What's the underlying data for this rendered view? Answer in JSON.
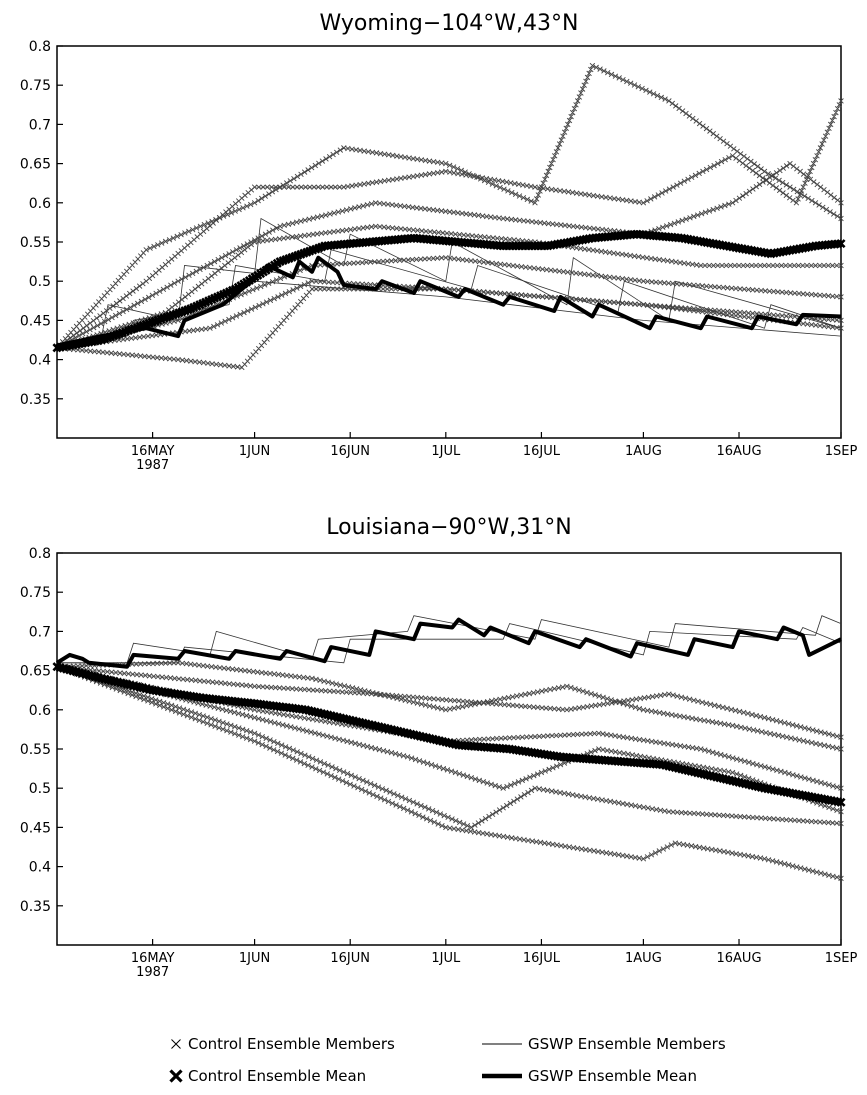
{
  "chart_data": [
    {
      "type": "line",
      "title": "Wyoming−104°W,43°N",
      "xlabel": "",
      "ylabel": "",
      "ylim": [
        0.3,
        0.8
      ],
      "yticks": [
        0.35,
        0.4,
        0.45,
        0.5,
        0.55,
        0.6,
        0.65,
        0.7,
        0.75,
        0.8
      ],
      "xlim": [
        "1987-05-01",
        "1987-09-01"
      ],
      "xticks": [
        {
          "date": "1987-05-16",
          "label": "16MAY",
          "sublabel": "1987"
        },
        {
          "date": "1987-06-01",
          "label": "1JUN"
        },
        {
          "date": "1987-06-16",
          "label": "16JUN"
        },
        {
          "date": "1987-07-01",
          "label": "1JUL"
        },
        {
          "date": "1987-07-16",
          "label": "16JUL"
        },
        {
          "date": "1987-08-01",
          "label": "1AUG"
        },
        {
          "date": "1987-08-16",
          "label": "16AUG"
        },
        {
          "date": "1987-09-01",
          "label": "1SEP"
        }
      ],
      "series": [
        {
          "name": "Control Ensemble Mean",
          "style": "mean-x",
          "x": [
            "1987-05-01",
            "1987-05-08",
            "1987-05-15",
            "1987-05-22",
            "1987-05-29",
            "1987-06-05",
            "1987-06-12",
            "1987-06-19",
            "1987-06-26",
            "1987-07-03",
            "1987-07-10",
            "1987-07-17",
            "1987-07-24",
            "1987-07-31",
            "1987-08-07",
            "1987-08-14",
            "1987-08-21",
            "1987-08-28",
            "1987-09-01"
          ],
          "y": [
            0.415,
            0.425,
            0.445,
            0.465,
            0.49,
            0.525,
            0.545,
            0.55,
            0.555,
            0.55,
            0.545,
            0.545,
            0.555,
            0.56,
            0.555,
            0.545,
            0.535,
            0.545,
            0.548
          ]
        },
        {
          "name": "GSWP Ensemble Mean",
          "style": "mean-line",
          "x": [
            "1987-05-01",
            "1987-05-08",
            "1987-05-15",
            "1987-05-20",
            "1987-05-21",
            "1987-05-27",
            "1987-06-02",
            "1987-06-03",
            "1987-06-07",
            "1987-06-08",
            "1987-06-10",
            "1987-06-11",
            "1987-06-14",
            "1987-06-15",
            "1987-06-20",
            "1987-06-21",
            "1987-06-26",
            "1987-06-27",
            "1987-07-03",
            "1987-07-04",
            "1987-07-10",
            "1987-07-11",
            "1987-07-18",
            "1987-07-19",
            "1987-07-24",
            "1987-07-25",
            "1987-08-02",
            "1987-08-03",
            "1987-08-10",
            "1987-08-11",
            "1987-08-18",
            "1987-08-19",
            "1987-08-25",
            "1987-08-26",
            "1987-09-01"
          ],
          "y": [
            0.418,
            0.43,
            0.44,
            0.43,
            0.45,
            0.47,
            0.51,
            0.52,
            0.505,
            0.525,
            0.512,
            0.53,
            0.512,
            0.495,
            0.49,
            0.5,
            0.485,
            0.5,
            0.48,
            0.49,
            0.47,
            0.48,
            0.462,
            0.48,
            0.455,
            0.47,
            0.44,
            0.455,
            0.44,
            0.455,
            0.44,
            0.455,
            0.445,
            0.457,
            0.455
          ]
        },
        {
          "name": "Control Ensemble Members",
          "style": "member-x",
          "x": [
            "1987-05-01",
            "1987-05-15",
            "1987-06-01",
            "1987-06-15",
            "1987-07-01",
            "1987-07-15",
            "1987-07-24",
            "1987-08-05",
            "1987-08-20",
            "1987-09-01"
          ],
          "y": [
            0.415,
            0.54,
            0.6,
            0.67,
            0.65,
            0.6,
            0.775,
            0.73,
            0.64,
            0.58
          ]
        },
        {
          "name": "Control Ensemble Members",
          "style": "member-x",
          "x": [
            "1987-05-01",
            "1987-05-15",
            "1987-06-01",
            "1987-06-15",
            "1987-07-01",
            "1987-07-15",
            "1987-08-01",
            "1987-08-15",
            "1987-08-25",
            "1987-09-01"
          ],
          "y": [
            0.415,
            0.5,
            0.62,
            0.62,
            0.64,
            0.62,
            0.6,
            0.66,
            0.6,
            0.73
          ]
        },
        {
          "name": "Control Ensemble Members",
          "style": "member-x",
          "x": [
            "1987-05-01",
            "1987-05-20",
            "1987-06-05",
            "1987-06-20",
            "1987-07-10",
            "1987-08-01",
            "1987-08-15",
            "1987-08-24",
            "1987-09-01"
          ],
          "y": [
            0.415,
            0.5,
            0.57,
            0.6,
            0.58,
            0.56,
            0.6,
            0.65,
            0.6
          ]
        },
        {
          "name": "Control Ensemble Members",
          "style": "member-x",
          "x": [
            "1987-05-01",
            "1987-05-18",
            "1987-06-01",
            "1987-06-20",
            "1987-07-15",
            "1987-08-10",
            "1987-09-01"
          ],
          "y": [
            0.415,
            0.46,
            0.55,
            0.57,
            0.55,
            0.52,
            0.52
          ]
        },
        {
          "name": "Control Ensemble Members",
          "style": "member-x",
          "x": [
            "1987-05-01",
            "1987-05-20",
            "1987-06-10",
            "1987-07-01",
            "1987-08-01",
            "1987-09-01"
          ],
          "y": [
            0.415,
            0.45,
            0.52,
            0.53,
            0.5,
            0.48
          ]
        },
        {
          "name": "Control Ensemble Members",
          "style": "member-x",
          "x": [
            "1987-05-01",
            "1987-05-25",
            "1987-06-10",
            "1987-07-01",
            "1987-08-01",
            "1987-09-01"
          ],
          "y": [
            0.415,
            0.44,
            0.5,
            0.49,
            0.47,
            0.45
          ]
        },
        {
          "name": "Control Ensemble Members",
          "style": "member-x",
          "x": [
            "1987-05-01",
            "1987-05-20",
            "1987-05-30",
            "1987-06-10",
            "1987-07-01",
            "1987-08-01",
            "1987-09-01"
          ],
          "y": [
            0.415,
            0.4,
            0.39,
            0.49,
            0.49,
            0.47,
            0.44
          ]
        },
        {
          "name": "GSWP Ensemble Members",
          "style": "member-line",
          "x": [
            "1987-05-01",
            "1987-05-08",
            "1987-05-09",
            "1987-05-20",
            "1987-05-21",
            "1987-06-01",
            "1987-06-02",
            "1987-06-15",
            "1987-06-16",
            "1987-07-01",
            "1987-07-02",
            "1987-07-20",
            "1987-07-21",
            "1987-08-05",
            "1987-08-06",
            "1987-09-01"
          ],
          "y": [
            0.418,
            0.43,
            0.47,
            0.45,
            0.52,
            0.51,
            0.58,
            0.52,
            0.56,
            0.5,
            0.55,
            0.47,
            0.53,
            0.45,
            0.5,
            0.44
          ]
        },
        {
          "name": "GSWP Ensemble Members",
          "style": "member-line",
          "x": [
            "1987-05-01",
            "1987-05-12",
            "1987-05-13",
            "1987-05-28",
            "1987-05-29",
            "1987-06-12",
            "1987-06-13",
            "1987-07-05",
            "1987-07-06",
            "1987-07-28",
            "1987-07-29",
            "1987-08-20",
            "1987-08-21",
            "1987-09-01"
          ],
          "y": [
            0.418,
            0.43,
            0.45,
            0.47,
            0.52,
            0.5,
            0.54,
            0.49,
            0.52,
            0.46,
            0.5,
            0.44,
            0.47,
            0.44
          ]
        },
        {
          "name": "GSWP Ensemble Members",
          "style": "member-line",
          "x": [
            "1987-05-01",
            "1987-05-16",
            "1987-06-01",
            "1987-07-01",
            "1987-08-01",
            "1987-09-01"
          ],
          "y": [
            0.418,
            0.44,
            0.5,
            0.48,
            0.45,
            0.43
          ]
        }
      ]
    },
    {
      "type": "line",
      "title": "Louisiana−90°W,31°N",
      "xlabel": "",
      "ylabel": "",
      "ylim": [
        0.3,
        0.8
      ],
      "yticks": [
        0.35,
        0.4,
        0.45,
        0.5,
        0.55,
        0.6,
        0.65,
        0.7,
        0.75,
        0.8
      ],
      "xlim": [
        "1987-05-01",
        "1987-09-01"
      ],
      "xticks": [
        {
          "date": "1987-05-16",
          "label": "16MAY",
          "sublabel": "1987"
        },
        {
          "date": "1987-06-01",
          "label": "1JUN"
        },
        {
          "date": "1987-06-16",
          "label": "16JUN"
        },
        {
          "date": "1987-07-01",
          "label": "1JUL"
        },
        {
          "date": "1987-07-16",
          "label": "16JUL"
        },
        {
          "date": "1987-08-01",
          "label": "1AUG"
        },
        {
          "date": "1987-08-16",
          "label": "16AUG"
        },
        {
          "date": "1987-09-01",
          "label": "1SEP"
        }
      ],
      "series": [
        {
          "name": "Control Ensemble Mean",
          "style": "mean-x",
          "x": [
            "1987-05-01",
            "1987-05-08",
            "1987-05-16",
            "1987-05-24",
            "1987-06-01",
            "1987-06-09",
            "1987-06-17",
            "1987-06-25",
            "1987-07-03",
            "1987-07-11",
            "1987-07-19",
            "1987-07-27",
            "1987-08-04",
            "1987-08-12",
            "1987-08-20",
            "1987-08-28",
            "1987-09-01"
          ],
          "y": [
            0.655,
            0.64,
            0.625,
            0.615,
            0.608,
            0.6,
            0.585,
            0.57,
            0.555,
            0.55,
            0.54,
            0.535,
            0.53,
            0.515,
            0.5,
            0.488,
            0.482
          ]
        },
        {
          "name": "GSWP Ensemble Mean",
          "style": "mean-line",
          "x": [
            "1987-05-01",
            "1987-05-03",
            "1987-05-05",
            "1987-05-06",
            "1987-05-12",
            "1987-05-13",
            "1987-05-20",
            "1987-05-21",
            "1987-05-28",
            "1987-05-29",
            "1987-06-05",
            "1987-06-06",
            "1987-06-12",
            "1987-06-13",
            "1987-06-19",
            "1987-06-20",
            "1987-06-26",
            "1987-06-27",
            "1987-07-02",
            "1987-07-03",
            "1987-07-07",
            "1987-07-08",
            "1987-07-14",
            "1987-07-15",
            "1987-07-22",
            "1987-07-23",
            "1987-07-30",
            "1987-07-31",
            "1987-08-08",
            "1987-08-09",
            "1987-08-15",
            "1987-08-16",
            "1987-08-22",
            "1987-08-23",
            "1987-08-26",
            "1987-08-27",
            "1987-09-01"
          ],
          "y": [
            0.66,
            0.67,
            0.665,
            0.66,
            0.655,
            0.67,
            0.665,
            0.675,
            0.665,
            0.675,
            0.665,
            0.675,
            0.662,
            0.68,
            0.67,
            0.7,
            0.69,
            0.71,
            0.705,
            0.715,
            0.695,
            0.705,
            0.685,
            0.7,
            0.68,
            0.69,
            0.668,
            0.685,
            0.67,
            0.69,
            0.68,
            0.7,
            0.69,
            0.705,
            0.695,
            0.67,
            0.69
          ]
        },
        {
          "name": "Control Ensemble Members",
          "style": "member-x",
          "x": [
            "1987-05-01",
            "1987-05-20",
            "1987-06-10",
            "1987-07-01",
            "1987-07-20",
            "1987-08-01",
            "1987-08-15",
            "1987-09-01"
          ],
          "y": [
            0.655,
            0.66,
            0.64,
            0.6,
            0.63,
            0.6,
            0.58,
            0.55
          ]
        },
        {
          "name": "Control Ensemble Members",
          "style": "member-x",
          "x": [
            "1987-05-01",
            "1987-06-01",
            "1987-06-20",
            "1987-07-20",
            "1987-08-05",
            "1987-08-20",
            "1987-09-01"
          ],
          "y": [
            0.655,
            0.63,
            0.62,
            0.6,
            0.62,
            0.59,
            0.565
          ]
        },
        {
          "name": "Control Ensemble Members",
          "style": "member-x",
          "x": [
            "1987-05-01",
            "1987-06-01",
            "1987-07-01",
            "1987-07-25",
            "1987-08-10",
            "1987-09-01"
          ],
          "y": [
            0.655,
            0.6,
            0.56,
            0.57,
            0.55,
            0.5
          ]
        },
        {
          "name": "Control Ensemble Members",
          "style": "member-x",
          "x": [
            "1987-05-01",
            "1987-06-01",
            "1987-06-25",
            "1987-07-10",
            "1987-07-25",
            "1987-08-15",
            "1987-09-01"
          ],
          "y": [
            0.655,
            0.59,
            0.54,
            0.5,
            0.55,
            0.52,
            0.47
          ]
        },
        {
          "name": "Control Ensemble Members",
          "style": "member-x",
          "x": [
            "1987-05-01",
            "1987-06-01",
            "1987-07-05",
            "1987-07-15",
            "1987-08-05",
            "1987-09-01"
          ],
          "y": [
            0.655,
            0.57,
            0.45,
            0.5,
            0.47,
            0.455
          ]
        },
        {
          "name": "Control Ensemble Members",
          "style": "member-x",
          "x": [
            "1987-05-01",
            "1987-06-01",
            "1987-07-01",
            "1987-08-01",
            "1987-08-06",
            "1987-08-20",
            "1987-09-01"
          ],
          "y": [
            0.655,
            0.56,
            0.45,
            0.41,
            0.43,
            0.41,
            0.385
          ]
        },
        {
          "name": "GSWP Ensemble Members",
          "style": "member-line",
          "x": [
            "1987-05-01",
            "1987-05-12",
            "1987-05-13",
            "1987-05-25",
            "1987-05-26",
            "1987-06-10",
            "1987-06-11",
            "1987-06-25",
            "1987-06-26",
            "1987-07-15",
            "1987-07-16",
            "1987-08-05",
            "1987-08-06",
            "1987-08-28",
            "1987-08-29",
            "1987-09-01"
          ],
          "y": [
            0.66,
            0.66,
            0.685,
            0.67,
            0.7,
            0.665,
            0.69,
            0.7,
            0.72,
            0.69,
            0.715,
            0.68,
            0.71,
            0.695,
            0.72,
            0.71
          ]
        },
        {
          "name": "GSWP Ensemble Members",
          "style": "member-line",
          "x": [
            "1987-05-01",
            "1987-05-20",
            "1987-05-21",
            "1987-06-15",
            "1987-06-16",
            "1987-07-10",
            "1987-07-11",
            "1987-08-01",
            "1987-08-02",
            "1987-08-25",
            "1987-08-26",
            "1987-09-01"
          ],
          "y": [
            0.66,
            0.66,
            0.68,
            0.66,
            0.69,
            0.69,
            0.71,
            0.67,
            0.7,
            0.69,
            0.705,
            0.685
          ]
        }
      ]
    }
  ],
  "legend": {
    "items": [
      {
        "name": "Control Ensemble Members",
        "marker": "small-x"
      },
      {
        "name": "GSWP Ensemble Members",
        "marker": "thin-line"
      },
      {
        "name": "Control Ensemble Mean",
        "marker": "bold-x"
      },
      {
        "name": "GSWP Ensemble Mean",
        "marker": "thick-line"
      }
    ]
  }
}
